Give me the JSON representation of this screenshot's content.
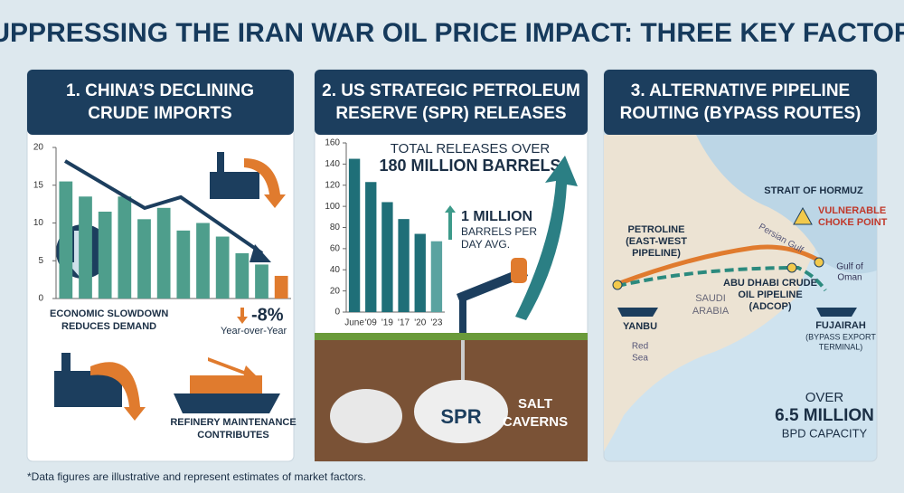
{
  "header": {
    "title": "SUPPRESSING THE IRAN WAR OIL PRICE IMPACT: THREE KEY FACTORS"
  },
  "panels": [
    {
      "title_lines": [
        "1. CHINA’S DECLINING",
        "CRUDE IMPORTS"
      ],
      "annotations": [
        "ECONOMIC SLOWDOWN",
        "REDUCES DEMAND",
        "-8%",
        "Year-over-Year",
        "REFINERY MAINTENANCE",
        "CONTRIBUTES"
      ]
    },
    {
      "title_lines": [
        "2. US STRATEGIC PETROLEUM",
        "RESERVE (SPR) RELEASES"
      ],
      "annotations": [
        "TOTAL RELEASES OVER",
        "180 MILLION BARRELS",
        "1 MILLION",
        "BARRELS PER",
        "DAY AVG.",
        "SPR",
        "SALT",
        "CAVERNS"
      ]
    },
    {
      "title_lines": [
        "3. ALTERNATIVE PIPELINE",
        "ROUTING (BYPASS ROUTES)"
      ],
      "labels": [
        "STRAIT OF HORMUZ",
        "VULNERABLE",
        "CHOKE POINT",
        "PETROLINE",
        "(EAST-WEST",
        "PIPELINE)",
        "Persian Gulf",
        "Gulf of",
        "Oman",
        "SAUDI",
        "ARABIA",
        "ABU DHABI CRUDE",
        "OIL PIPELINE",
        "(ADCOP)",
        "YANBU",
        "FUJAIRAH",
        "(BYPASS EXPORT",
        "TERMINAL)",
        "Red",
        "Sea",
        "OVER",
        "6.5 MILLION",
        "BPD CAPACITY"
      ]
    }
  ],
  "chart_data": [
    {
      "type": "bar",
      "categories": [
        null,
        null,
        null,
        null,
        null,
        null,
        null,
        null,
        null,
        null,
        null,
        null
      ],
      "values": [
        15.5,
        13.5,
        11.5,
        13.5,
        10.5,
        12,
        9,
        10,
        8.2,
        6,
        4.5,
        3
      ],
      "colors": [
        "#4e9e8c",
        "#4e9e8c",
        "#4e9e8c",
        "#4e9e8c",
        "#4e9e8c",
        "#4e9e8c",
        "#4e9e8c",
        "#4e9e8c",
        "#4e9e8c",
        "#4e9e8c",
        "#4e9e8c",
        "#e07b2e"
      ],
      "ylim": [
        0,
        20
      ],
      "yticks": [
        0,
        5,
        10,
        15,
        20
      ]
    },
    {
      "type": "bar",
      "categories": [
        "June",
        "'09",
        "'19",
        "'17",
        "'20",
        "'23"
      ],
      "values": [
        145,
        123,
        104,
        88,
        74,
        67
      ],
      "colors": [
        "#1f6f78",
        "#1f6f78",
        "#1f6f78",
        "#1f6f78",
        "#1f6f78",
        "#5aa3a0"
      ],
      "ylim": [
        0,
        160
      ],
      "yticks": [
        0,
        20,
        40,
        60,
        80,
        100,
        120,
        140,
        160
      ]
    }
  ],
  "footnote": "*Data figures are illustrative and represent estimates of market factors."
}
